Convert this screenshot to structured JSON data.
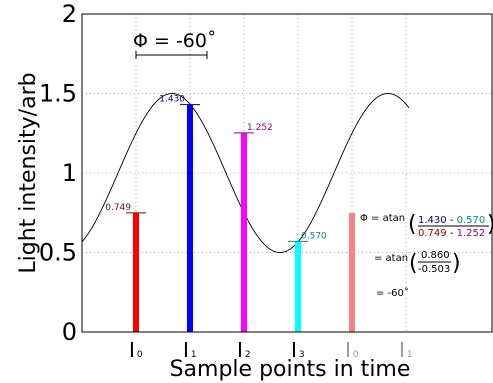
{
  "chart_data": {
    "type": "bar",
    "title": "",
    "xlabel": "Sample points in time",
    "ylabel": "Light intensity/arb",
    "ylim": [
      0,
      2
    ],
    "yticks": [
      "0",
      "0.5",
      "1",
      "1.5",
      "2"
    ],
    "grid": true,
    "phase_annotation": "Φ = -60˚",
    "curve": {
      "type": "sine",
      "offset": 1.0,
      "amplitude": 0.5
    },
    "bars": [
      {
        "label": "I",
        "sub": "0",
        "value": 0.749,
        "value_label": "0.749",
        "color": "#ff0000",
        "label_color": "#8b0000"
      },
      {
        "label": "I",
        "sub": "1",
        "value": 1.43,
        "value_label": "1.430",
        "color": "#0000ff",
        "label_color": "#00008b"
      },
      {
        "label": "I",
        "sub": "2",
        "value": 1.252,
        "value_label": "1.252",
        "color": "#ff00ff",
        "label_color": "#8b008b"
      },
      {
        "label": "I",
        "sub": "3",
        "value": 0.57,
        "value_label": "0.570",
        "color": "#00ffff",
        "label_color": "#008b8b"
      },
      {
        "label": "I",
        "sub": "0",
        "value": 0.749,
        "value_label": "",
        "color": "#ff8080",
        "label_color": "#8b0000",
        "faded": true
      },
      {
        "label": "I",
        "sub": "1",
        "value": 0,
        "value_label": "",
        "color": "#808080",
        "label_color": "#808080",
        "faded": true
      }
    ],
    "formula": {
      "line1_prefix": "Φ = atan",
      "num_a": "1.430",
      "num_op": " - ",
      "num_b": "0.570",
      "den_a": "0.749",
      "den_op": " - ",
      "den_b": "1.252",
      "line2_prefix": "= atan",
      "num2": "0.860",
      "den2": "-0.503",
      "line3": "= -60˚"
    }
  }
}
